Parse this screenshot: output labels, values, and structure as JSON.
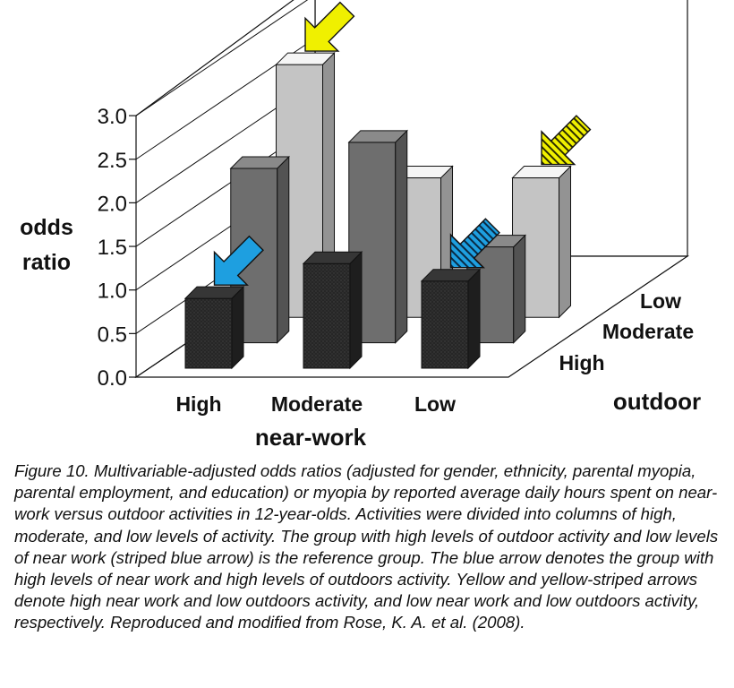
{
  "chart_data": {
    "type": "bar",
    "ylabel": "odds ratio",
    "xlabel": "near-work",
    "zlabel": "outdoor",
    "ylim": [
      0.0,
      3.0
    ],
    "y_ticks": [
      "0.0",
      "0.5",
      "1.0",
      "1.5",
      "2.0",
      "2.5",
      "3.0"
    ],
    "categories": [
      "High",
      "Moderate",
      "Low"
    ],
    "series": [
      {
        "name": "High",
        "values": [
          0.8,
          1.2,
          1.0
        ]
      },
      {
        "name": "Moderate",
        "values": [
          2.0,
          2.3,
          1.1
        ]
      },
      {
        "name": "Low",
        "values": [
          2.9,
          1.6,
          1.6
        ]
      }
    ],
    "colors": {
      "High": "#2b2b2b",
      "Moderate": "#6e6e6e",
      "Low": "#c4c4c4"
    },
    "arrows": [
      {
        "series": "High",
        "category": "High",
        "color": "#1e9fe0",
        "style": "solid"
      },
      {
        "series": "Low",
        "category": "High",
        "color": "#f0f000",
        "style": "solid"
      },
      {
        "series": "High",
        "category": "Low",
        "color": "#1e9fe0",
        "style": "striped"
      },
      {
        "series": "Low",
        "category": "Low",
        "color": "#f0f000",
        "style": "striped"
      }
    ]
  },
  "caption": "Figure 10.  Multivariable-adjusted odds ratios (adjusted for gender, ethnicity, parental myopia, parental employment, and education) or myopia by reported average daily hours spent on near-work versus outdoor activities in 12-year-olds. Activities were divided into columns of high, moderate, and low levels of activity. The group with high levels of outdoor activity and low levels of near work (striped blue arrow) is the reference group. The blue arrow denotes the group with high levels of near work and high levels of outdoors activity. Yellow and yellow-striped arrows denote high near work and low outdoors activity, and low near work and low outdoors activity, respectively. Reproduced and modified from Rose, K. A. et al. (2008)."
}
